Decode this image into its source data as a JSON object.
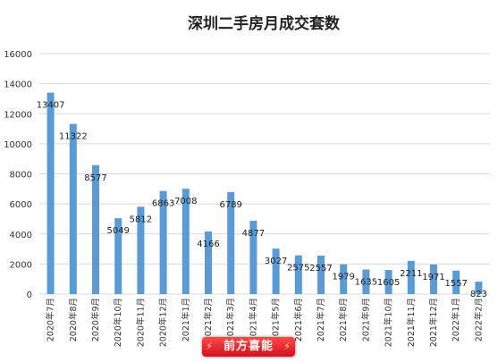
{
  "chart_data": {
    "type": "bar",
    "title": "深圳二手房月成交套数",
    "xlabel": "",
    "ylabel": "",
    "ylim": [
      0,
      16000
    ],
    "yticks": [
      0,
      2000,
      4000,
      6000,
      8000,
      10000,
      12000,
      14000,
      16000
    ],
    "grid": true,
    "legend": "none",
    "bar_color": "#5b9bd5",
    "categories": [
      "2020年7月",
      "2020年8月",
      "2020年9月",
      "2020年10月",
      "2020年11月",
      "2020年12月",
      "2021年1月",
      "2021年2月",
      "2021年3月",
      "2021年4月",
      "2021年5月",
      "2021年6月",
      "2021年7月",
      "2021年8月",
      "2021年9月",
      "2021年10月",
      "2021年11月",
      "2021年12月",
      "2022年1月",
      "2022年2月"
    ],
    "values": [
      13407,
      11322,
      8577,
      5049,
      5812,
      6863,
      7008,
      4166,
      6789,
      4877,
      3027,
      2575,
      2557,
      1979,
      1635,
      1605,
      2211,
      1971,
      1557,
      823
    ]
  },
  "watermark": {
    "text": "前方喜能",
    "icon": "lightning-bolt-icon"
  }
}
